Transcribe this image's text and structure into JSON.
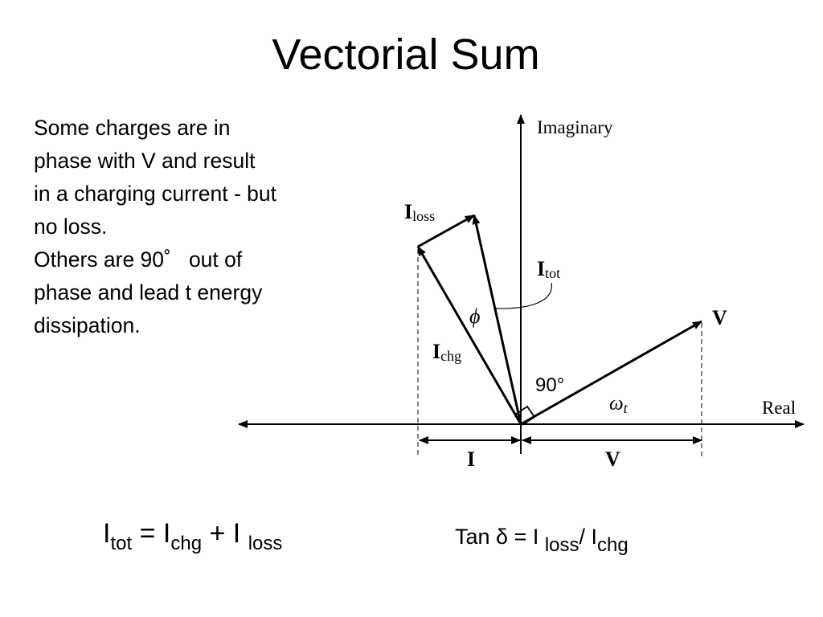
{
  "title": "Vectorial Sum",
  "text": {
    "lines": [
      "Some charges are in",
      "phase with V and result",
      "in a charging current - but",
      "no loss.",
      "Others are 90˚   out of",
      "phase and lead t energy",
      "dissipation."
    ]
  },
  "diagram": {
    "imaginary_axis": "Imaginary",
    "real_axis": "Real",
    "i_loss": {
      "main": "I",
      "sub": "loss"
    },
    "i_tot": {
      "main": "I",
      "sub": "tot"
    },
    "i_chg": {
      "main": "I",
      "sub": "chg"
    },
    "phi": "ϕ",
    "right_angle": "90°",
    "v_vector": "V",
    "omega": {
      "main": "ω",
      "sub": "t"
    },
    "i_span": "I",
    "v_span": "V"
  },
  "equations": [
    [
      [
        "I",
        "tot"
      ],
      [
        " = I",
        "chg"
      ],
      [
        " + I ",
        "loss"
      ]
    ],
    [
      [
        "Tan δ = I ",
        "loss"
      ],
      [
        "/ I",
        "chg"
      ]
    ]
  ]
}
